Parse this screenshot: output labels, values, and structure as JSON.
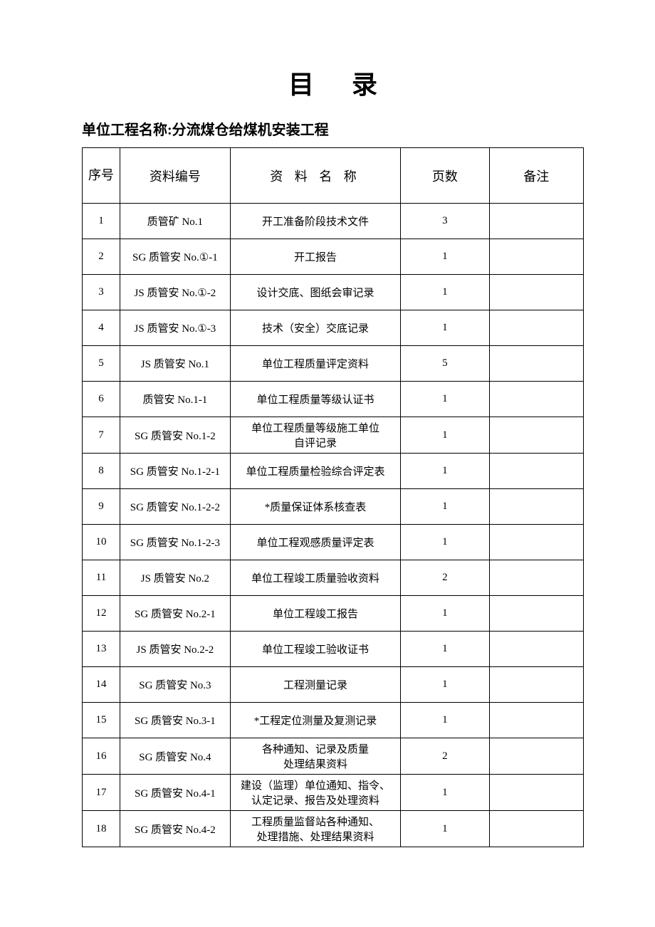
{
  "title": "目 录",
  "subtitle": "单位工程名称:分流煤仓给煤机安装工程",
  "columns": {
    "seq": "序号",
    "docid": "资料编号",
    "name": "资 料 名 称",
    "pages": "页数",
    "notes": "备注"
  },
  "rows": [
    {
      "seq": "1",
      "docid": "质管矿 No.1",
      "name": "开工准备阶段技术文件",
      "pages": "3",
      "notes": ""
    },
    {
      "seq": "2",
      "docid": "SG 质管安 No.①-1",
      "name": "开工报告",
      "pages": "1",
      "notes": ""
    },
    {
      "seq": "3",
      "docid": "JS 质管安 No.①-2",
      "name": "设计交底、图纸会审记录",
      "pages": "1",
      "notes": ""
    },
    {
      "seq": "4",
      "docid": "JS 质管安 No.①-3",
      "name": "技术（安全）交底记录",
      "pages": "1",
      "notes": ""
    },
    {
      "seq": "5",
      "docid": "JS 质管安 No.1",
      "name": "单位工程质量评定资料",
      "pages": "5",
      "notes": ""
    },
    {
      "seq": "6",
      "docid": "质管安 No.1-1",
      "name": "单位工程质量等级认证书",
      "pages": "1",
      "notes": ""
    },
    {
      "seq": "7",
      "docid": "SG 质管安 No.1-2",
      "name": "单位工程质量等级施工单位\n自评记录",
      "pages": "1",
      "notes": ""
    },
    {
      "seq": "8",
      "docid": "SG 质管安 No.1-2-1",
      "name": "单位工程质量检验综合评定表",
      "pages": "1",
      "notes": ""
    },
    {
      "seq": "9",
      "docid": "SG 质管安 No.1-2-2",
      "name": "*质量保证体系核查表",
      "pages": "1",
      "notes": ""
    },
    {
      "seq": "10",
      "docid": "SG 质管安 No.1-2-3",
      "name": "单位工程观感质量评定表",
      "pages": "1",
      "notes": ""
    },
    {
      "seq": "11",
      "docid": "JS 质管安 No.2",
      "name": "单位工程竣工质量验收资料",
      "pages": "2",
      "notes": ""
    },
    {
      "seq": "12",
      "docid": "SG 质管安 No.2-1",
      "name": "单位工程竣工报告",
      "pages": "1",
      "notes": ""
    },
    {
      "seq": "13",
      "docid": "JS 质管安 No.2-2",
      "name": "单位工程竣工验收证书",
      "pages": "1",
      "notes": ""
    },
    {
      "seq": "14",
      "docid": "SG 质管安 No.3",
      "name": "工程测量记录",
      "pages": "1",
      "notes": ""
    },
    {
      "seq": "15",
      "docid": "SG 质管安 No.3-1",
      "name": "*工程定位测量及复测记录",
      "pages": "1",
      "notes": ""
    },
    {
      "seq": "16",
      "docid": "SG 质管安 No.4",
      "name": "各种通知、记录及质量\n处理结果资料",
      "pages": "2",
      "notes": ""
    },
    {
      "seq": "17",
      "docid": "SG 质管安 No.4-1",
      "name": "建设（监理）单位通知、指令、\n认定记录、报告及处理资料",
      "pages": "1",
      "notes": ""
    },
    {
      "seq": "18",
      "docid": "SG 质管安 No.4-2",
      "name": "工程质量监督站各种通知、\n处理措施、处理结果资料",
      "pages": "1",
      "notes": ""
    }
  ],
  "styling": {
    "page_bg": "#ffffff",
    "text_color": "#000000",
    "border_color": "#000000",
    "title_fontsize": 36,
    "subtitle_fontsize": 20,
    "header_fontsize": 18,
    "cell_fontsize": 15,
    "font_family": "SimSun"
  }
}
